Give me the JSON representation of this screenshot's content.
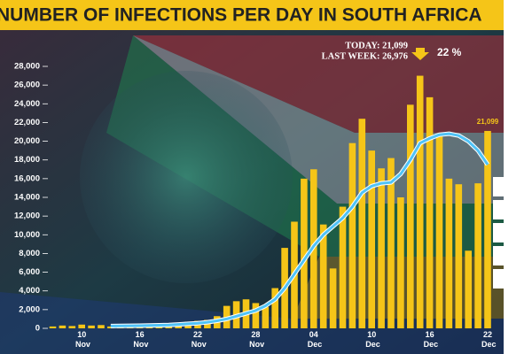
{
  "chart_data": {
    "type": "bar",
    "title": "NUMBER OF INFECTIONS PER DAY IN SOUTH AFRICA",
    "annotations": [
      "TODAY: 21,099",
      "LAST WEEK: 26,976",
      "22 %"
    ],
    "categories": [
      null,
      null,
      null,
      "10 Nov",
      null,
      null,
      null,
      null,
      null,
      "16 Nov",
      null,
      null,
      null,
      null,
      null,
      "22 Nov",
      null,
      null,
      null,
      null,
      null,
      "28 Nov",
      null,
      null,
      null,
      null,
      null,
      "04 Dec",
      null,
      null,
      null,
      null,
      null,
      "10 Dec",
      null,
      null,
      null,
      null,
      null,
      "16 Dec",
      null,
      null,
      null,
      null,
      null,
      "22 Dec"
    ],
    "series": [
      {
        "type": "bar",
        "color": "#f5c518",
        "values": [
          200,
          300,
          250,
          400,
          300,
          350,
          200,
          300,
          250,
          300,
          350,
          400,
          500,
          600,
          700,
          800,
          900,
          1300,
          2400,
          2900,
          3100,
          2700,
          2300,
          4300,
          8600,
          11400,
          16000,
          17000,
          11100,
          6400,
          13000,
          19800,
          22400,
          19000,
          17100,
          18200,
          14000,
          23900,
          27000,
          24700,
          20600,
          16000,
          15400,
          8300,
          15500,
          21099
        ],
        "value_labels": [
          null,
          null,
          null,
          null,
          null,
          null,
          null,
          null,
          null,
          null,
          null,
          null,
          null,
          null,
          null,
          null,
          null,
          null,
          null,
          null,
          null,
          null,
          null,
          null,
          null,
          null,
          null,
          null,
          null,
          null,
          null,
          null,
          null,
          null,
          null,
          null,
          null,
          null,
          null,
          null,
          null,
          null,
          null,
          null,
          null,
          "21,099"
        ]
      },
      {
        "type": "line",
        "color": "#4fc3f7",
        "values": [
          null,
          null,
          null,
          null,
          null,
          null,
          250,
          260,
          270,
          280,
          300,
          330,
          360,
          420,
          480,
          550,
          650,
          800,
          1000,
          1300,
          1600,
          1900,
          2400,
          3100,
          4300,
          5800,
          7300,
          8800,
          10000,
          10900,
          11800,
          13000,
          14500,
          15200,
          15500,
          15600,
          16500,
          18000,
          19800,
          20300,
          20700,
          20800,
          20600,
          20000,
          19000,
          17500
        ]
      }
    ],
    "ylim": [
      0,
      28000
    ],
    "yticks": [
      0,
      {
        "value": 2000,
        "label": "2,000"
      },
      {
        "value": 4000,
        "label": "4,000"
      },
      {
        "value": 6000,
        "label": "6,000"
      },
      {
        "value": 8000,
        "label": "8,000"
      },
      {
        "value": 10000,
        "label": "10,000"
      },
      {
        "value": 12000,
        "label": "12,000"
      },
      {
        "value": 14000,
        "label": "14,000"
      },
      {
        "value": 16000,
        "label": "16,000"
      },
      {
        "value": 18000,
        "label": "18,000"
      },
      {
        "value": 20000,
        "label": "20,000"
      },
      {
        "value": 22000,
        "label": "22,000"
      },
      {
        "value": 24000,
        "label": "24,000"
      },
      {
        "value": 26000,
        "label": "26,000"
      },
      {
        "value": 28000,
        "label": "28,000"
      }
    ],
    "grid": false
  }
}
